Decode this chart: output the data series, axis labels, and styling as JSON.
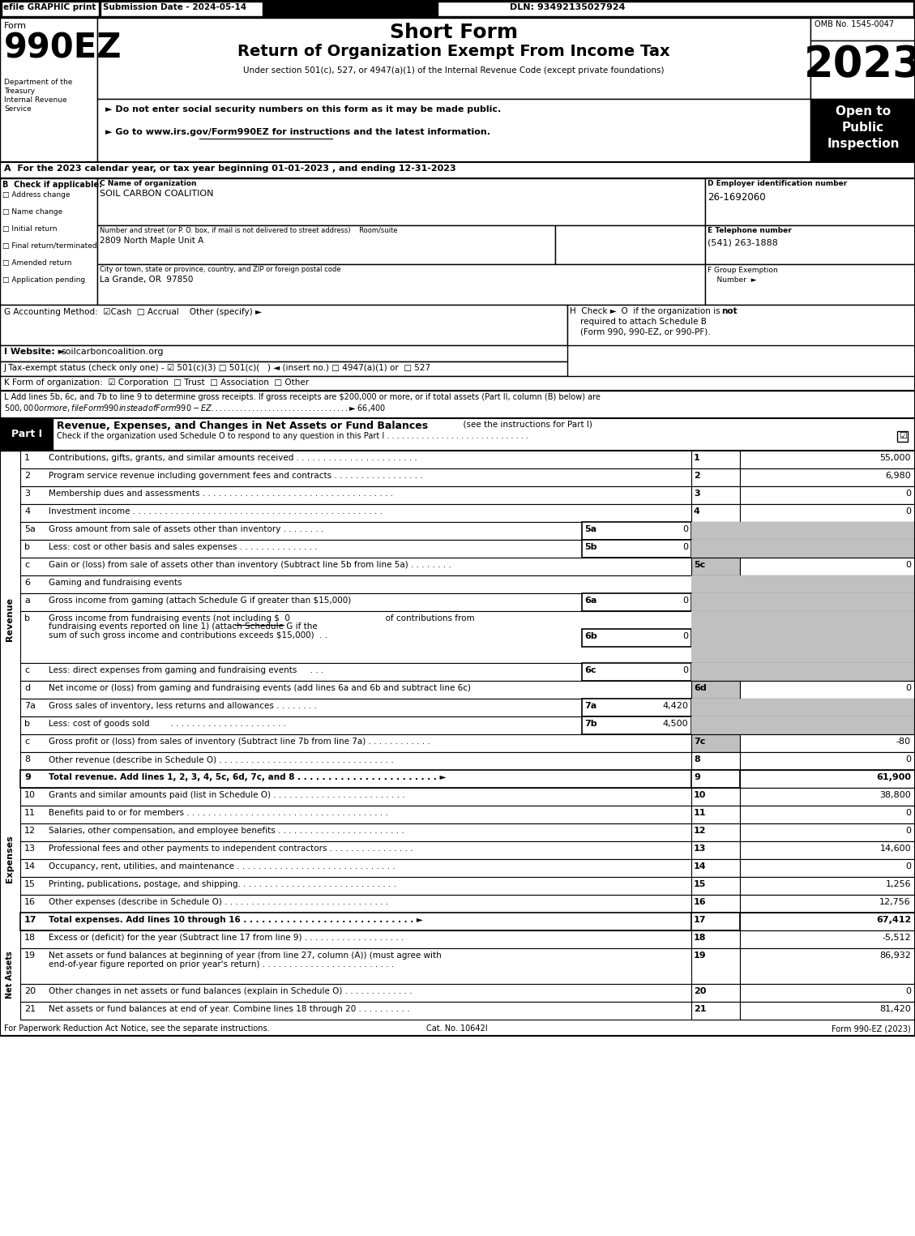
{
  "title_short": "Short Form",
  "title_long": "Return of Organization Exempt From Income Tax",
  "subtitle": "Under section 501(c), 527, or 4947(a)(1) of the Internal Revenue Code (except private foundations)",
  "form_number": "990EZ",
  "year": "2023",
  "omb": "OMB No. 1545-0047",
  "efile_text": "efile GRAPHIC print",
  "submission_date": "Submission Date - 2024-05-14",
  "dln": "DLN: 93492135027924",
  "open_to_public": "Open to\nPublic\nInspection",
  "privacy_note": "► Do not enter social security numbers on this form as it may be made public.",
  "goto_note": "► Go to www.irs.gov/Form990EZ for instructions and the latest information.",
  "year_line": "A  For the 2023 calendar year, or tax year beginning 01-01-2023 , and ending 12-31-2023",
  "org_name_label": "C Name of organization",
  "org_name": "SOIL CARBON COALITION",
  "ein_label": "D Employer identification number",
  "ein": "26-1692060",
  "address_label": "Number and street (or P. O. box, if mail is not delivered to street address)    Room/suite",
  "address": "2809 North Maple Unit A",
  "phone_label": "E Telephone number",
  "phone": "(541) 263-1888",
  "city_label": "City or town, state or province, country, and ZIP or foreign postal code",
  "city": "La Grande, OR  97850",
  "group_exemption_line1": "F Group Exemption",
  "group_exemption_line2": "    Number  ►",
  "check_b_label": "B  Check if applicable:",
  "checkboxes_b": [
    "Address change",
    "Name change",
    "Initial return",
    "Final return/terminated",
    "Amended return",
    "Application pending"
  ],
  "accounting_method": "G Accounting Method:  ☑Cash  □ Accrual    Other (specify) ►",
  "tax_exempt_status": "J Tax-exempt status (check only one) - ☑ 501(c)(3) □ 501(c)(   ) ◄ (insert no.) □ 4947(a)(1) or  □ 527",
  "form_org": "K Form of organization:  ☑ Corporation  □ Trust  □ Association  □ Other",
  "line_L1": "L Add lines 5b, 6c, and 7b to line 9 to determine gross receipts. If gross receipts are $200,000 or more, or if total assets (Part II, column (B) below) are",
  "line_L2": "$500,000 or more, file Form 990 instead of Form 990-EZ . . . . . . . . . . . . . . . . . . . . . . . . . . . . . . . . . . ► $ 66,400",
  "part1_title": "Part I",
  "part1_heading": "Revenue, Expenses, and Changes in Net Assets or Fund Balances",
  "part1_sub": "(see the instructions for Part I)",
  "part1_check": "Check if the organization used Schedule O to respond to any question in this Part I . . . . . . . . . . . . . . . . . . . . . . . . . . . . .",
  "expense_lines": [
    {
      "num": "10",
      "text": "Grants and similar amounts paid (list in Schedule O) . . . . . . . . . . . . . . . . . . . . . . . . .",
      "value": "38,800"
    },
    {
      "num": "11",
      "text": "Benefits paid to or for members . . . . . . . . . . . . . . . . . . . . . . . . . . . . . . . . . . . . . .",
      "value": "0"
    },
    {
      "num": "12",
      "text": "Salaries, other compensation, and employee benefits . . . . . . . . . . . . . . . . . . . . . . . .",
      "value": "0"
    },
    {
      "num": "13",
      "text": "Professional fees and other payments to independent contractors . . . . . . . . . . . . . . . .",
      "value": "14,600"
    },
    {
      "num": "14",
      "text": "Occupancy, rent, utilities, and maintenance . . . . . . . . . . . . . . . . . . . . . . . . . . . . . .",
      "value": "0"
    },
    {
      "num": "15",
      "text": "Printing, publications, postage, and shipping. . . . . . . . . . . . . . . . . . . . . . . . . . . . . .",
      "value": "1,256"
    },
    {
      "num": "16",
      "text": "Other expenses (describe in Schedule O) . . . . . . . . . . . . . . . . . . . . . . . . . . . . . . .",
      "value": "12,756"
    },
    {
      "num": "17",
      "text": "Total expenses. Add lines 10 through 16 . . . . . . . . . . . . . . . . . . . . . . . . . . . . ►",
      "value": "67,412",
      "bold": true
    }
  ],
  "net_asset_lines": [
    {
      "num": "18",
      "text": "Excess or (deficit) for the year (Subtract line 17 from line 9) . . . . . . . . . . . . . . . . . . .",
      "value": "-5,512"
    },
    {
      "num": "19",
      "text1": "Net assets or fund balances at beginning of year (from line 27, column (A)) (must agree with",
      "text2": "end-of-year figure reported on prior year's return) . . . . . . . . . . . . . . . . . . . . . . . . .",
      "value": "86,932",
      "multiline": true
    },
    {
      "num": "20",
      "text": "Other changes in net assets or fund balances (explain in Schedule O) . . . . . . . . . . . . .",
      "value": "0"
    },
    {
      "num": "21",
      "text": "Net assets or fund balances at end of year. Combine lines 18 through 20 . . . . . . . . . .",
      "value": "81,420"
    }
  ],
  "footer_left": "For Paperwork Reduction Act Notice, see the separate instructions.",
  "footer_cat": "Cat. No. 10642I",
  "footer_right": "Form 990-EZ (2023)"
}
